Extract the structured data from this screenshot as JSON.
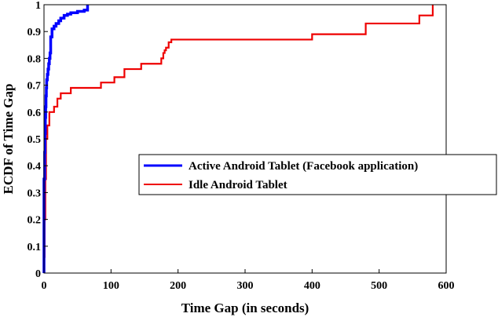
{
  "chart_data": {
    "type": "line",
    "xlabel": "Time Gap (in seconds)",
    "ylabel": "ECDF of Time Gap",
    "xlim": [
      0,
      600
    ],
    "ylim": [
      0,
      1
    ],
    "xticks": [
      0,
      100,
      200,
      300,
      400,
      500,
      600
    ],
    "yticks": [
      0,
      0.1,
      0.2,
      0.3,
      0.4,
      0.5,
      0.6,
      0.7,
      0.8,
      0.9,
      1
    ],
    "ytick_labels": [
      "0",
      "0.1",
      "0.2",
      "0.3",
      "0.4",
      "0.5",
      "0.6",
      "0.7",
      "0.8",
      "0.9",
      "1"
    ],
    "grid": false,
    "legend_position": "right",
    "series": [
      {
        "name": "Active Android Tablet (Facebook application)",
        "color": "#0000ff",
        "step": true,
        "x": [
          0,
          1,
          1.5,
          2,
          2.5,
          3,
          3.5,
          4,
          5,
          6,
          7,
          8,
          9,
          10,
          12,
          15,
          18,
          22,
          25,
          30,
          35,
          40,
          50,
          60,
          65
        ],
        "y": [
          0.35,
          0.45,
          0.52,
          0.58,
          0.62,
          0.66,
          0.69,
          0.72,
          0.74,
          0.76,
          0.78,
          0.8,
          0.82,
          0.88,
          0.91,
          0.92,
          0.93,
          0.94,
          0.95,
          0.96,
          0.965,
          0.97,
          0.975,
          0.98,
          1.0
        ]
      },
      {
        "name": "Idle Android Tablet",
        "color": "#ee0000",
        "step": true,
        "x": [
          0,
          0.5,
          1,
          2,
          3,
          5,
          8,
          15,
          20,
          25,
          40,
          85,
          105,
          120,
          145,
          150,
          175,
          178,
          180,
          182,
          186,
          190,
          400,
          480,
          560,
          575,
          580
        ],
        "y": [
          0.01,
          0.06,
          0.2,
          0.35,
          0.5,
          0.55,
          0.6,
          0.62,
          0.65,
          0.67,
          0.69,
          0.71,
          0.73,
          0.76,
          0.78,
          0.78,
          0.8,
          0.82,
          0.83,
          0.84,
          0.86,
          0.87,
          0.89,
          0.93,
          0.96,
          0.96,
          1.0
        ]
      }
    ]
  }
}
